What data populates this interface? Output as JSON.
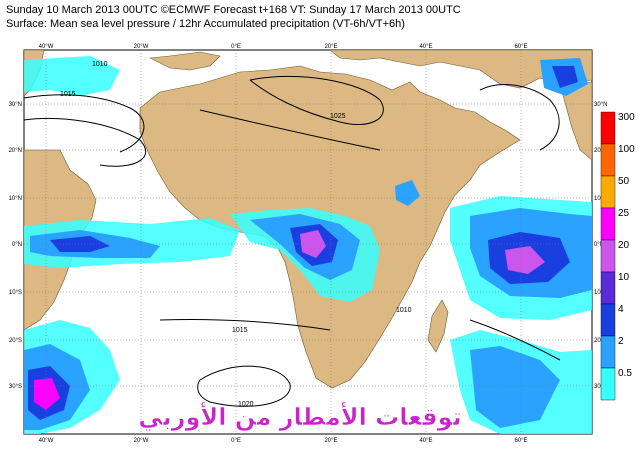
{
  "header": {
    "line1": "Sunday 10 March 2013 00UTC ©ECMWF Forecast t+168 VT: Sunday 17 March 2013 00UTC",
    "line2": "Surface: Mean sea level pressure / 12hr Accumulated precipitation (VT-6h/VT+6h)"
  },
  "axes": {
    "lon_labels": [
      "40°W",
      "20°W",
      "0°E",
      "20°E",
      "40°E",
      "60°E"
    ],
    "lat_labels": [
      "30°N",
      "20°N",
      "10°N",
      "0°N",
      "10°S",
      "20°S",
      "30°S"
    ]
  },
  "legend": {
    "labels": [
      "300",
      "100",
      "50",
      "25",
      "20",
      "10",
      "4",
      "2",
      "0.5"
    ],
    "colors": [
      "#ff0000",
      "#ff6600",
      "#ffaa00",
      "#ff00ff",
      "#cc55ee",
      "#5a2bd8",
      "#1a3fe0",
      "#29a3ff",
      "#35ffff"
    ]
  },
  "isobars": [
    "1015",
    "1010",
    "1025",
    "1020",
    "1015",
    "1010"
  ],
  "watermark": "توقعات الأمطار من الأوربي",
  "colors": {
    "land": "#dcb882",
    "sea": "#ffffff",
    "light_precip": "#35ffff",
    "mid_precip": "#29a3ff",
    "heavy_precip": "#1a3fe0"
  }
}
